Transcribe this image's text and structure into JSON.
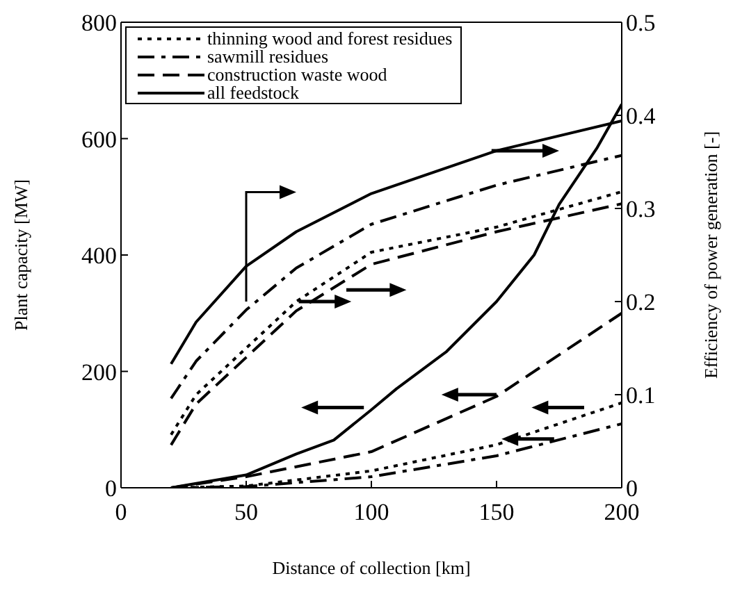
{
  "chart_data": {
    "type": "line",
    "xlabel": "Distance of collection [km]",
    "ylabel": "Plant capacity [MW]",
    "y2label": "Efficiency of power generation [-]",
    "xlim": [
      0,
      200
    ],
    "xticks": [
      0,
      50,
      100,
      150,
      200
    ],
    "ylim": [
      0,
      800
    ],
    "yticks": [
      0,
      200,
      400,
      600,
      800
    ],
    "y2lim": [
      0,
      0.5
    ],
    "y2ticks": [
      0,
      0.1,
      0.2,
      0.3,
      0.4,
      0.5
    ],
    "legend": "top left",
    "marker": "none",
    "series": [
      {
        "name": "thinning wood and forest residues",
        "color": "#000000",
        "line_style": "dotted",
        "axis": "y2",
        "x": [
          20,
          30,
          50,
          70,
          100,
          150,
          200
        ],
        "values": [
          0.057,
          0.1,
          0.15,
          0.2,
          0.253,
          0.28,
          0.318
        ]
      },
      {
        "name": "sawmill residues",
        "color": "#000000",
        "line_style": "dashdot",
        "axis": "y2",
        "x": [
          20,
          30,
          50,
          70,
          100,
          150,
          200
        ],
        "values": [
          0.096,
          0.136,
          0.191,
          0.236,
          0.283,
          0.325,
          0.357
        ]
      },
      {
        "name": "construction waste wood",
        "color": "#000000",
        "line_style": "dashed",
        "axis": "y2",
        "x": [
          20,
          30,
          50,
          70,
          100,
          150,
          200
        ],
        "values": [
          0.046,
          0.09,
          0.14,
          0.19,
          0.24,
          0.275,
          0.305
        ]
      },
      {
        "name": "all feedstock",
        "color": "#000000",
        "line_style": "solid",
        "axis": "y2",
        "x": [
          20,
          30,
          50,
          70,
          100,
          150,
          200
        ],
        "values": [
          0.133,
          0.178,
          0.238,
          0.275,
          0.316,
          0.362,
          0.394
        ]
      },
      {
        "color": "#000000",
        "line_style": "dotted",
        "x": [
          20,
          50,
          100,
          150,
          200
        ],
        "values": [
          0,
          3,
          29,
          74,
          146
        ]
      },
      {
        "color": "#000000",
        "line_style": "dashdot",
        "x": [
          20,
          50,
          100,
          150,
          200
        ],
        "values": [
          0,
          2,
          19,
          55,
          110
        ]
      },
      {
        "color": "#000000",
        "line_style": "dashed",
        "x": [
          20,
          50,
          100,
          150,
          200
        ],
        "values": [
          0,
          19,
          62,
          157,
          300
        ]
      },
      {
        "color": "#000000",
        "line_style": "solid",
        "x": [
          20,
          50,
          70,
          85,
          100,
          110,
          130,
          150,
          165,
          175,
          190,
          200
        ],
        "values": [
          0,
          22,
          58,
          82,
          134,
          170,
          234,
          320,
          400,
          487,
          583,
          659
        ]
      }
    ]
  }
}
